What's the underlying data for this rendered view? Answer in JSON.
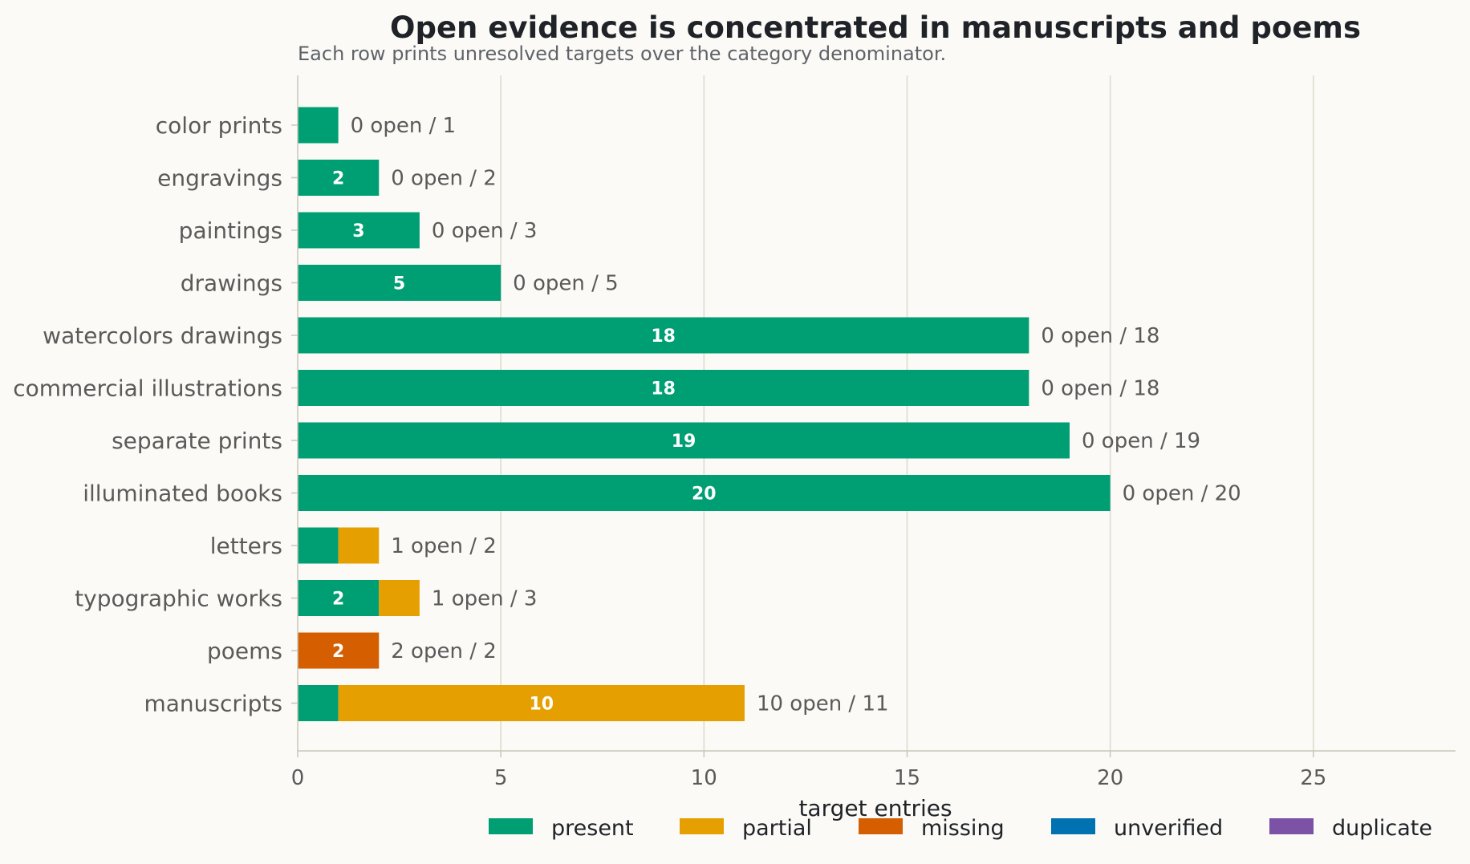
{
  "chart_data": {
    "type": "bar",
    "orientation": "horizontal",
    "stacked": true,
    "title": "Open evidence is concentrated in manuscripts and poems",
    "subtitle": "Each row prints unresolved targets over the category denominator.",
    "xlabel": "target entries",
    "ylabel": "",
    "xlim": [
      0,
      28.5
    ],
    "xticks": [
      0,
      5,
      10,
      15,
      20,
      25
    ],
    "grid": "vertical",
    "legend_position": "bottom",
    "categories": [
      "color prints",
      "engravings",
      "paintings",
      "drawings",
      "watercolors drawings",
      "commercial illustrations",
      "separate prints",
      "illuminated books",
      "letters",
      "typographic works",
      "poems",
      "manuscripts"
    ],
    "series": [
      {
        "name": "present",
        "color": "#009e73",
        "values": [
          1,
          2,
          3,
          5,
          18,
          18,
          19,
          20,
          1,
          2,
          0,
          1
        ]
      },
      {
        "name": "partial",
        "color": "#e69f00",
        "values": [
          0,
          0,
          0,
          0,
          0,
          0,
          0,
          0,
          1,
          1,
          0,
          10
        ]
      },
      {
        "name": "missing",
        "color": "#d55e00",
        "values": [
          0,
          0,
          0,
          0,
          0,
          0,
          0,
          0,
          0,
          0,
          2,
          0
        ]
      },
      {
        "name": "unverified",
        "color": "#0072b2",
        "values": [
          0,
          0,
          0,
          0,
          0,
          0,
          0,
          0,
          0,
          0,
          0,
          0
        ]
      },
      {
        "name": "duplicate",
        "color": "#7b52a5",
        "values": [
          0,
          0,
          0,
          0,
          0,
          0,
          0,
          0,
          0,
          0,
          0,
          0
        ]
      }
    ],
    "row_notes": [
      "0 open / 1",
      "0 open / 2",
      "0 open / 3",
      "0 open / 5",
      "0 open / 18",
      "0 open / 18",
      "0 open / 19",
      "0 open / 20",
      "1 open / 2",
      "1 open / 3",
      "2 open / 2",
      "10 open / 11"
    ]
  }
}
